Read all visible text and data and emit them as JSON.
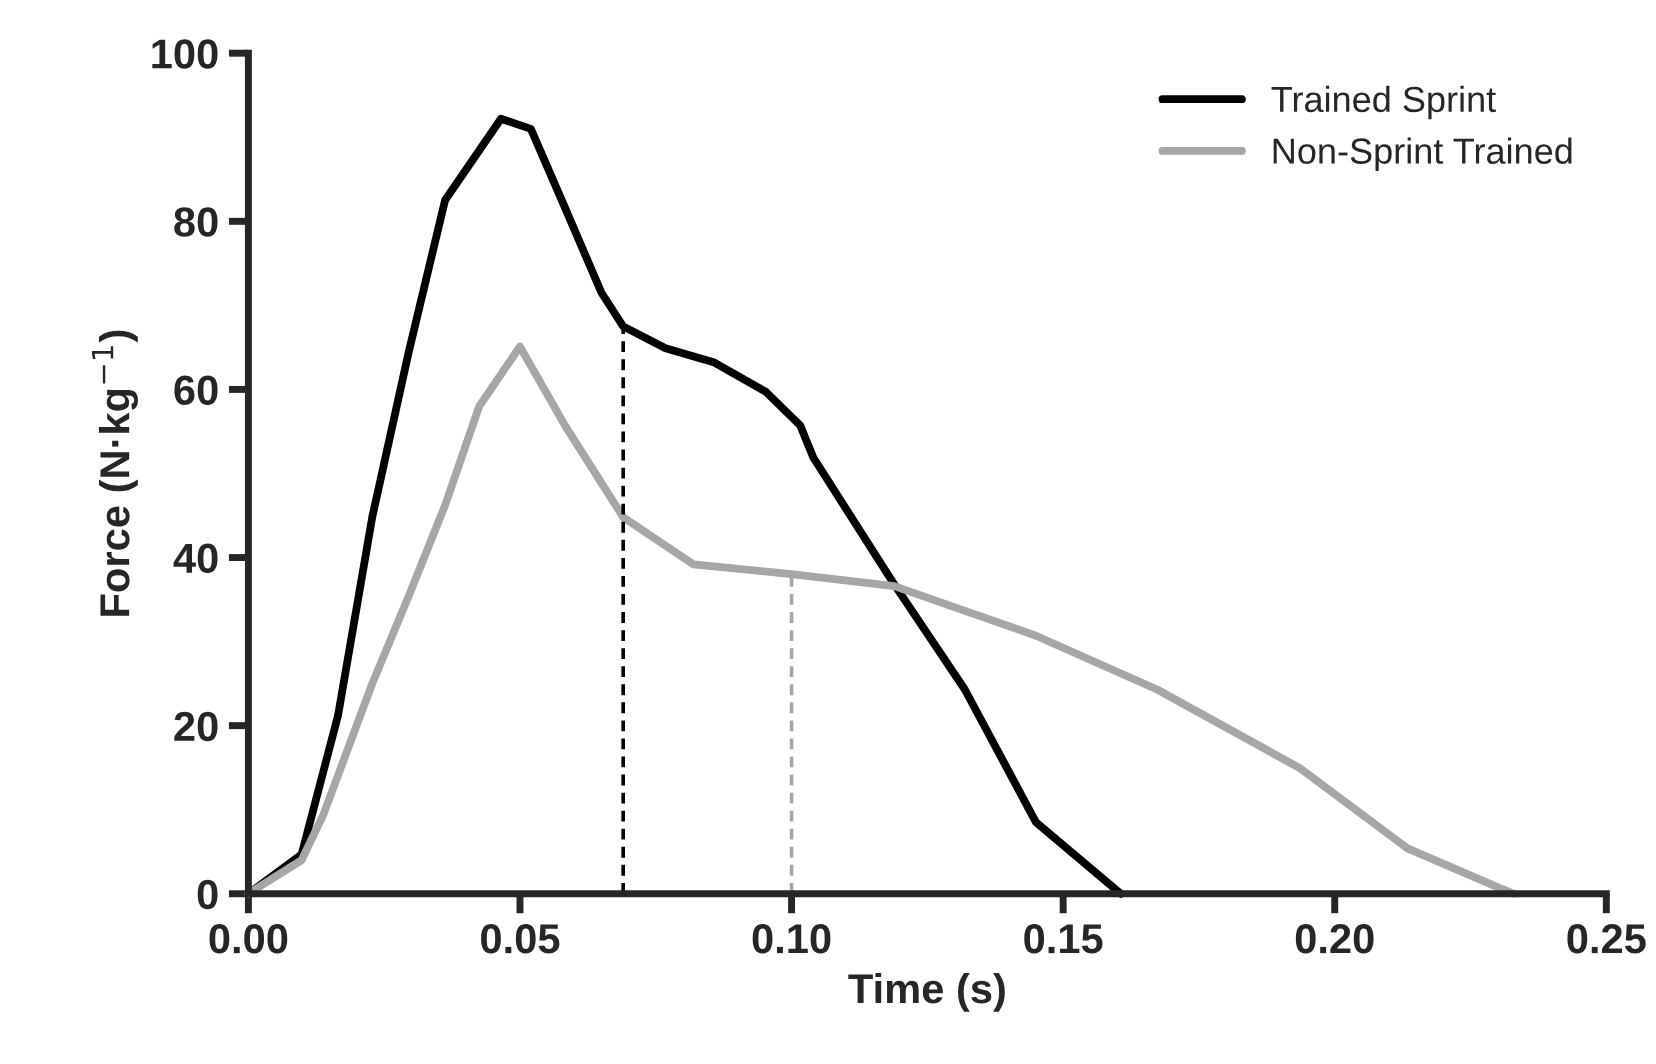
{
  "chart_data": {
    "type": "line",
    "xlabel": "Time (s)",
    "ylabel": "Force (N·kg$^{−1}$)",
    "xlim": [
      0,
      0.25
    ],
    "ylim": [
      0,
      100
    ],
    "xticks": [
      {
        "value": 0,
        "label": "0.00"
      },
      {
        "value": 0.05,
        "label": "0.05"
      },
      {
        "value": 0.1,
        "label": "0.10"
      },
      {
        "value": 0.15,
        "label": "0.15"
      },
      {
        "value": 0.2,
        "label": "0.20"
      },
      {
        "value": 0.25,
        "label": "0.25"
      }
    ],
    "yticks": [
      0,
      20,
      40,
      60,
      80,
      100
    ],
    "grid": false,
    "legend": "top right",
    "marker": "none",
    "line_style": "solid",
    "series": [
      {
        "name": "Trained Sprint",
        "color": "#000000",
        "x": [
          0,
          0.0098,
          0.0165,
          0.0228,
          0.0295,
          0.0362,
          0.0465,
          0.052,
          0.0583,
          0.065,
          0.069,
          0.0768,
          0.0858,
          0.0953,
          0.1016,
          0.104,
          0.1189,
          0.1319,
          0.145,
          0.1606
        ],
        "values": [
          0,
          4.7,
          21.2,
          44.8,
          64.4,
          82.5,
          92.2,
          91,
          81.6,
          71.5,
          67.5,
          64.9,
          63.2,
          59.7,
          55.7,
          51.9,
          36.8,
          24.3,
          8.5,
          0
        ]
      },
      {
        "name": "Non-Sprint Trained",
        "color": "#a6a6a6",
        "x": [
          0,
          0.0098,
          0.0138,
          0.0228,
          0.0295,
          0.0362,
          0.0425,
          0.05,
          0.0583,
          0.069,
          0.0819,
          0.1004,
          0.1189,
          0.145,
          0.1673,
          0.1937,
          0.2134,
          0.2303,
          0.233
        ],
        "values": [
          0,
          4,
          9.4,
          25,
          35.4,
          46.2,
          58,
          65.1,
          55.7,
          44.8,
          39.2,
          38,
          36.6,
          30.7,
          24.3,
          14.9,
          5.4,
          0.7,
          0
        ]
      },
      {
        "color": "#000000",
        "line_style": "dashed",
        "x": [
          0.069,
          0.069
        ],
        "values": [
          0,
          67.5
        ]
      },
      {
        "color": "#a6a6a6",
        "line_style": "dashed",
        "x": [
          0.1,
          0.1
        ],
        "values": [
          0,
          38
        ]
      }
    ]
  }
}
